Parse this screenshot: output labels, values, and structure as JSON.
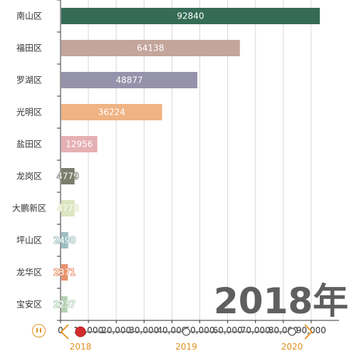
{
  "chart_data": {
    "type": "bar",
    "orientation": "horizontal",
    "categories": [
      "南山区",
      "福田区",
      "罗湖区",
      "光明区",
      "盐田区",
      "龙岗区",
      "大鹏新区",
      "坪山区",
      "龙华区",
      "宝安区"
    ],
    "values": [
      92840,
      64138,
      48877,
      36224,
      12956,
      4779,
      4778,
      2490,
      2371,
      2237
    ],
    "data_labels": [
      "92840",
      "64138",
      "48877",
      "36224",
      "12956",
      "4779",
      "4778",
      "2490",
      "2371",
      "2237"
    ],
    "bar_colors": [
      "#356b57",
      "#c3a59b",
      "#9592ab",
      "#efb384",
      "#e5b0b4",
      "#7a7d6b",
      "#dde5c1",
      "#9ebec2",
      "#e8926e",
      "#b6d0b6"
    ],
    "x_ticks": [
      0,
      10000,
      20000,
      30000,
      40000,
      50000,
      60000,
      70000,
      80000,
      90000
    ],
    "x_tick_labels": [
      "0",
      "10,000",
      "20,000",
      "30,000",
      "40,000",
      "50,000",
      "60,000",
      "70,000",
      "80,000",
      "90,000"
    ],
    "xlim": [
      0,
      100000
    ],
    "grid": "vertical",
    "title": "",
    "xlabel": "",
    "ylabel": "",
    "overlay_label": "2018年"
  },
  "timeline": {
    "years": [
      "2018",
      "2019",
      "2020"
    ],
    "current_index": 0,
    "accent_color": "#e3901e",
    "current_color": "#d42b2b",
    "play_icon": "pause-icon",
    "prev_icon": "chevron-left-icon",
    "next_icon": "chevron-right-icon"
  }
}
